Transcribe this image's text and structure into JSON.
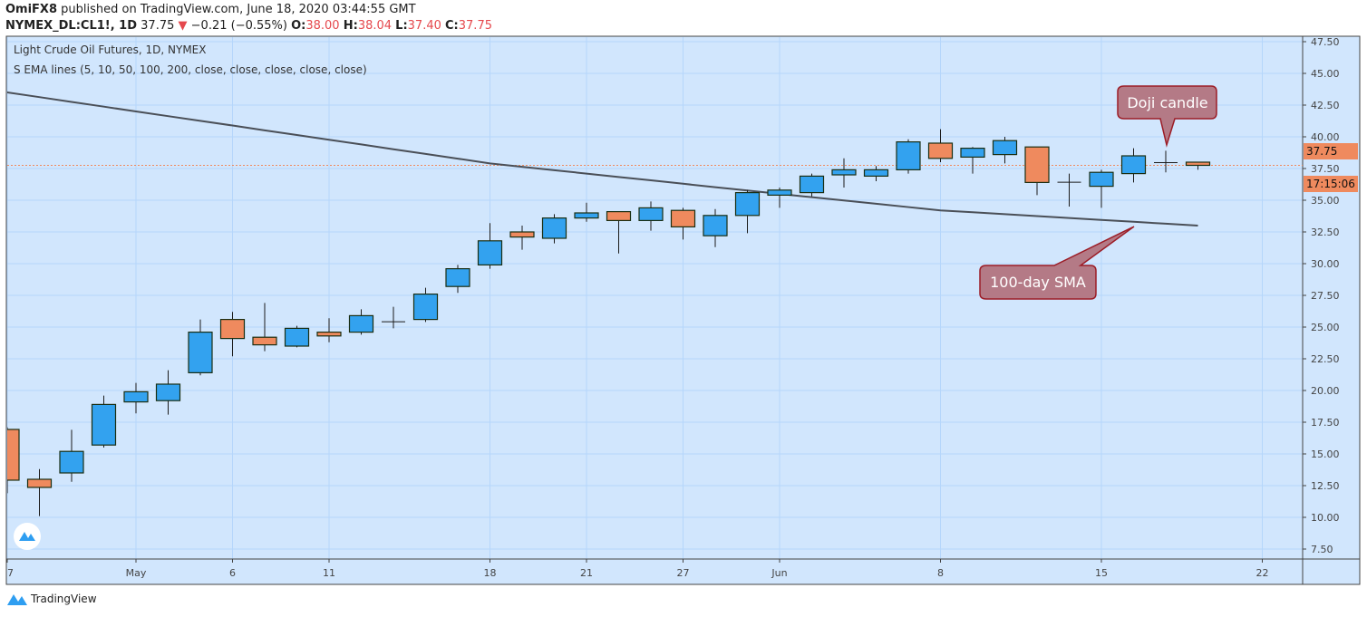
{
  "header": {
    "author": "OmiFX8",
    "published": "published on TradingView.com, June 18, 2020 03:44:55 GMT",
    "symbol": "NYMEX_DL:CL1!, 1D",
    "last": "37.75",
    "change": "−0.21 (−0.55%)",
    "o_label": "O:",
    "o": "38.00",
    "h_label": "H:",
    "h": "38.04",
    "l_label": "L:",
    "l": "37.40",
    "c_label": "C:",
    "c": "37.75"
  },
  "legend": {
    "title": "Light Crude Oil Futures, 1D, NYMEX",
    "indicator": "S EMA lines (5, 10, 50, 100, 200, close, close, close, close, close)"
  },
  "price_tag": "37.75",
  "countdown": "17:15:06",
  "footer": {
    "brand": "TradingView"
  },
  "colors": {
    "up": "#33a2ef",
    "down": "#ef8a5e",
    "background": "#d1e6fd",
    "sma": "#4a4f57",
    "callout": "#b47a86"
  },
  "chart_data": {
    "type": "candlestick",
    "title": "Light Crude Oil Futures, 1D, NYMEX",
    "ylim": [
      7.5,
      47.5
    ],
    "yticks": [
      "47.50",
      "45.00",
      "42.50",
      "40.00",
      "37.50",
      "35.00",
      "32.50",
      "30.00",
      "27.50",
      "25.00",
      "22.50",
      "20.00",
      "17.50",
      "15.00",
      "12.50",
      "10.00",
      "7.50"
    ],
    "xticks": [
      {
        "label": "7",
        "index": 0
      },
      {
        "label": "May",
        "index": 4
      },
      {
        "label": "6",
        "index": 7
      },
      {
        "label": "11",
        "index": 10
      },
      {
        "label": "18",
        "index": 15
      },
      {
        "label": "21",
        "index": 18
      },
      {
        "label": "27",
        "index": 21
      },
      {
        "label": "Jun",
        "index": 24
      },
      {
        "label": "8",
        "index": 29
      },
      {
        "label": "15",
        "index": 34
      },
      {
        "label": "22",
        "index": 39
      }
    ],
    "candles": [
      [
        16.93,
        17.1,
        11.9,
        12.93
      ],
      [
        13.0,
        13.8,
        10.1,
        12.36
      ],
      [
        13.5,
        16.9,
        12.8,
        15.2
      ],
      [
        15.7,
        19.6,
        15.5,
        18.9
      ],
      [
        19.1,
        20.6,
        18.2,
        19.9
      ],
      [
        19.2,
        21.6,
        18.1,
        20.5
      ],
      [
        21.4,
        25.6,
        21.2,
        24.6
      ],
      [
        25.6,
        26.2,
        22.7,
        24.1
      ],
      [
        24.2,
        26.9,
        23.1,
        23.6
      ],
      [
        23.5,
        25.1,
        23.4,
        24.9
      ],
      [
        24.6,
        25.7,
        23.8,
        24.3
      ],
      [
        24.6,
        26.4,
        24.4,
        25.9
      ],
      [
        25.4,
        26.6,
        24.9,
        25.42
      ],
      [
        25.6,
        28.1,
        25.4,
        27.6
      ],
      [
        28.2,
        29.9,
        27.7,
        29.6
      ],
      [
        29.9,
        33.2,
        29.6,
        31.8
      ],
      [
        32.5,
        33.0,
        31.1,
        32.1
      ],
      [
        32.0,
        33.9,
        31.6,
        33.6
      ],
      [
        33.6,
        34.8,
        33.3,
        34.0
      ],
      [
        34.1,
        34.1,
        30.8,
        33.4
      ],
      [
        33.4,
        34.9,
        32.6,
        34.4
      ],
      [
        34.2,
        34.4,
        31.9,
        32.9
      ],
      [
        32.2,
        34.3,
        31.3,
        33.8
      ],
      [
        33.8,
        35.8,
        32.4,
        35.6
      ],
      [
        35.4,
        36.0,
        34.4,
        35.8
      ],
      [
        35.6,
        37.1,
        35.3,
        36.9
      ],
      [
        37.0,
        38.3,
        36.0,
        37.4
      ],
      [
        36.9,
        37.7,
        36.5,
        37.4
      ],
      [
        37.4,
        39.8,
        37.1,
        39.6
      ],
      [
        39.5,
        40.6,
        38.0,
        38.3
      ],
      [
        38.4,
        39.2,
        37.1,
        39.1
      ],
      [
        38.6,
        40.0,
        37.9,
        39.7
      ],
      [
        39.2,
        39.2,
        35.4,
        36.4
      ],
      [
        36.4,
        37.1,
        34.5,
        36.42
      ],
      [
        36.1,
        37.4,
        34.4,
        37.2
      ],
      [
        37.1,
        39.1,
        36.4,
        38.5
      ],
      [
        37.95,
        38.9,
        37.2,
        37.96
      ],
      [
        38.0,
        38.04,
        37.4,
        37.75
      ]
    ],
    "sma100": [
      43.5,
      43.13,
      42.75,
      42.38,
      42.0,
      41.63,
      41.26,
      40.89,
      40.51,
      40.14,
      39.77,
      39.4,
      39.02,
      38.65,
      38.28,
      37.9,
      37.63,
      37.37,
      37.1,
      36.83,
      36.57,
      36.3,
      36.03,
      35.77,
      35.5,
      35.24,
      34.98,
      34.72,
      34.46,
      34.2,
      34.05,
      33.9,
      33.75,
      33.6,
      33.45,
      33.3,
      33.15,
      33.0
    ],
    "current_price": 37.75,
    "annotations": [
      {
        "text": "Doji candle",
        "target_index": 36,
        "target_price": 39.2
      },
      {
        "text": "100-day SMA",
        "target_index": 35,
        "target_price": 33.4
      }
    ]
  }
}
